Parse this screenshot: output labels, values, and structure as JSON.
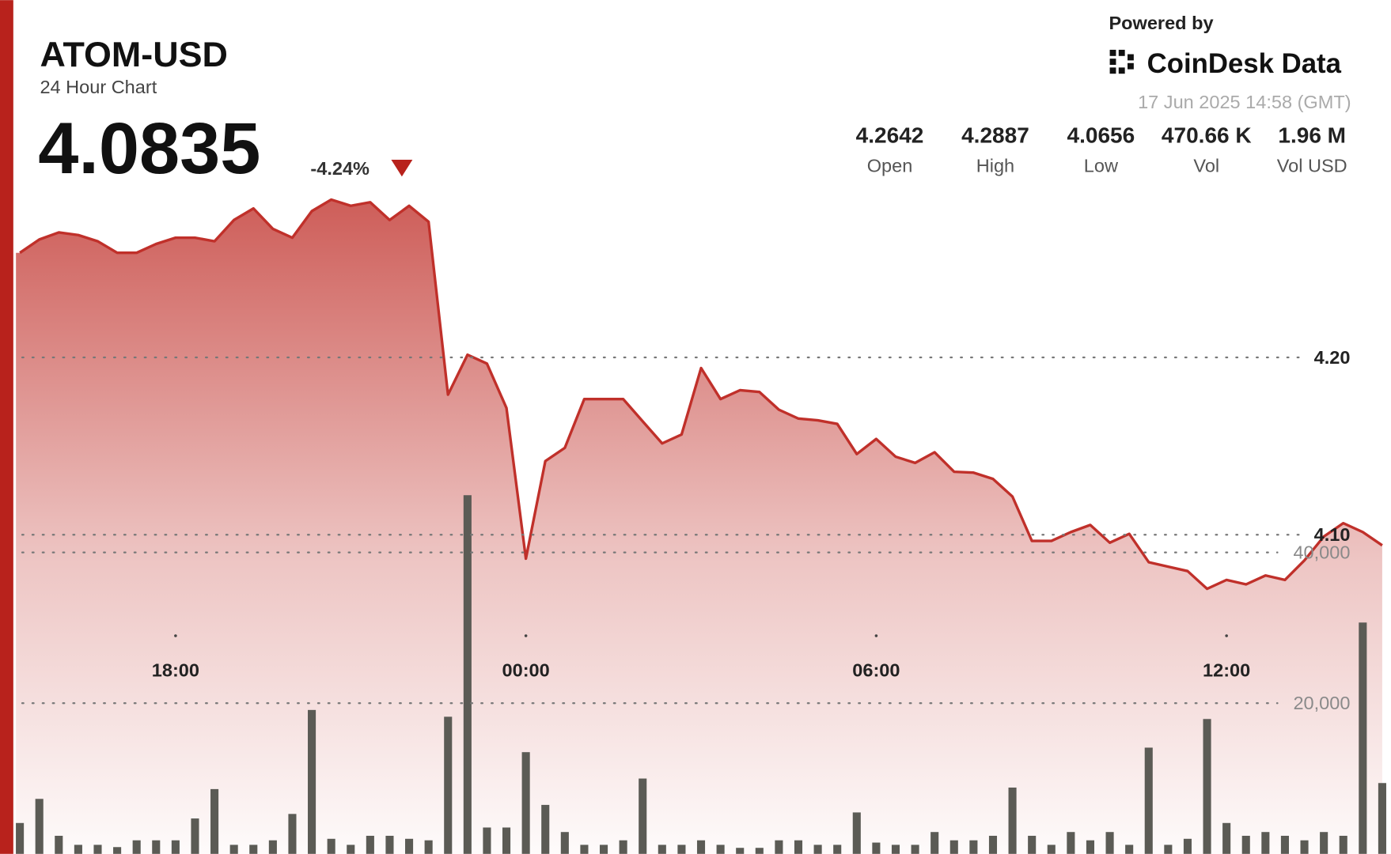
{
  "header": {
    "symbol": "ATOM-USD",
    "subtitle": "24 Hour Chart",
    "price": "4.0835",
    "change": "-4.24%",
    "powered_by": "Powered by",
    "brand": "CoinDesk Data",
    "timestamp": "17 Jun 2025 14:58 (GMT)",
    "stats": [
      {
        "value": "4.2642",
        "label": "Open"
      },
      {
        "value": "4.2887",
        "label": "High"
      },
      {
        "value": "4.0656",
        "label": "Low"
      },
      {
        "value": "470.66 K",
        "label": "Vol"
      },
      {
        "value": "1.96 M",
        "label": "Vol USD"
      }
    ]
  },
  "chart_data": {
    "type": "line",
    "x": [
      "15:20",
      "15:40",
      "16:00",
      "16:20",
      "16:40",
      "17:00",
      "17:20",
      "17:40",
      "18:00",
      "18:20",
      "18:40",
      "19:00",
      "19:20",
      "19:40",
      "20:00",
      "20:20",
      "20:40",
      "21:00",
      "21:20",
      "21:40",
      "22:00",
      "22:20",
      "22:40",
      "23:00",
      "23:20",
      "23:40",
      "00:00",
      "00:20",
      "00:40",
      "01:00",
      "01:20",
      "01:40",
      "02:00",
      "02:20",
      "02:40",
      "03:00",
      "03:20",
      "03:40",
      "04:00",
      "04:20",
      "04:40",
      "05:00",
      "05:20",
      "05:40",
      "06:00",
      "06:20",
      "06:40",
      "07:00",
      "07:20",
      "07:40",
      "08:00",
      "08:20",
      "08:40",
      "09:00",
      "09:20",
      "09:40",
      "10:00",
      "10:20",
      "10:40",
      "11:00",
      "11:20",
      "11:40",
      "12:00",
      "12:20",
      "12:40",
      "13:00",
      "13:20",
      "13:40",
      "14:00",
      "14:20",
      "14:40"
    ],
    "xlim": [
      "15:16",
      "14:49"
    ],
    "xticks": [
      "18:00",
      "00:00",
      "06:00",
      "12:00"
    ],
    "ylim": [
      3.92,
      4.4015
    ],
    "yticks": [
      {
        "value": 4.1,
        "label": "4.10"
      },
      {
        "value": 4.2,
        "label": "4.20"
      }
    ],
    "y2lim": [
      0,
      113300
    ],
    "y2ticks": [
      {
        "value": 20000,
        "label": "20,000"
      },
      {
        "value": 40000,
        "label": "40,000"
      }
    ],
    "grid": true,
    "series": [
      {
        "color": "#c0302a",
        "values": [
          4.259,
          4.2665,
          4.2705,
          4.269,
          4.2655,
          4.259,
          4.259,
          4.264,
          4.2675,
          4.2675,
          4.2655,
          4.2775,
          4.284,
          4.2725,
          4.2675,
          4.2825,
          4.289,
          4.2855,
          4.2875,
          4.2775,
          4.2855,
          4.2765,
          4.179,
          4.2015,
          4.1965,
          4.1715,
          4.0865,
          4.1415,
          4.149,
          4.1765,
          4.1765,
          4.1765,
          4.164,
          4.1515,
          4.1565,
          4.194,
          4.1765,
          4.1815,
          4.1805,
          4.1705,
          4.1655,
          4.1645,
          4.1625,
          4.1455,
          4.154,
          4.144,
          4.1405,
          4.1465,
          4.1355,
          4.135,
          4.1315,
          4.1215,
          4.0965,
          4.0965,
          4.1015,
          4.1055,
          4.0955,
          4.1005,
          4.0845,
          4.082,
          4.0795,
          4.0695,
          4.0745,
          4.072,
          4.077,
          4.0745,
          4.0855,
          4.099,
          4.1065,
          4.1015,
          4.094
        ]
      },
      {
        "type": "bar",
        "axis": "y2",
        "color": "#5b5b55",
        "values": [
          4100,
          7300,
          2400,
          1200,
          1200,
          900,
          1800,
          1800,
          1800,
          4700,
          8600,
          1200,
          1200,
          1800,
          5300,
          19100,
          2000,
          1200,
          2400,
          2400,
          2000,
          1800,
          18200,
          47600,
          3500,
          3500,
          13500,
          6500,
          2900,
          1200,
          1200,
          1800,
          10000,
          1200,
          1200,
          1800,
          1200,
          800,
          800,
          1800,
          1800,
          1200,
          1200,
          5500,
          1500,
          1200,
          1200,
          2900,
          1800,
          1800,
          2400,
          8800,
          2400,
          1200,
          2900,
          1800,
          2900,
          1200,
          14100,
          1200,
          2000,
          17900,
          4100,
          2400,
          2900,
          2400,
          1800,
          2900,
          2400,
          30700,
          9400
        ]
      }
    ]
  }
}
